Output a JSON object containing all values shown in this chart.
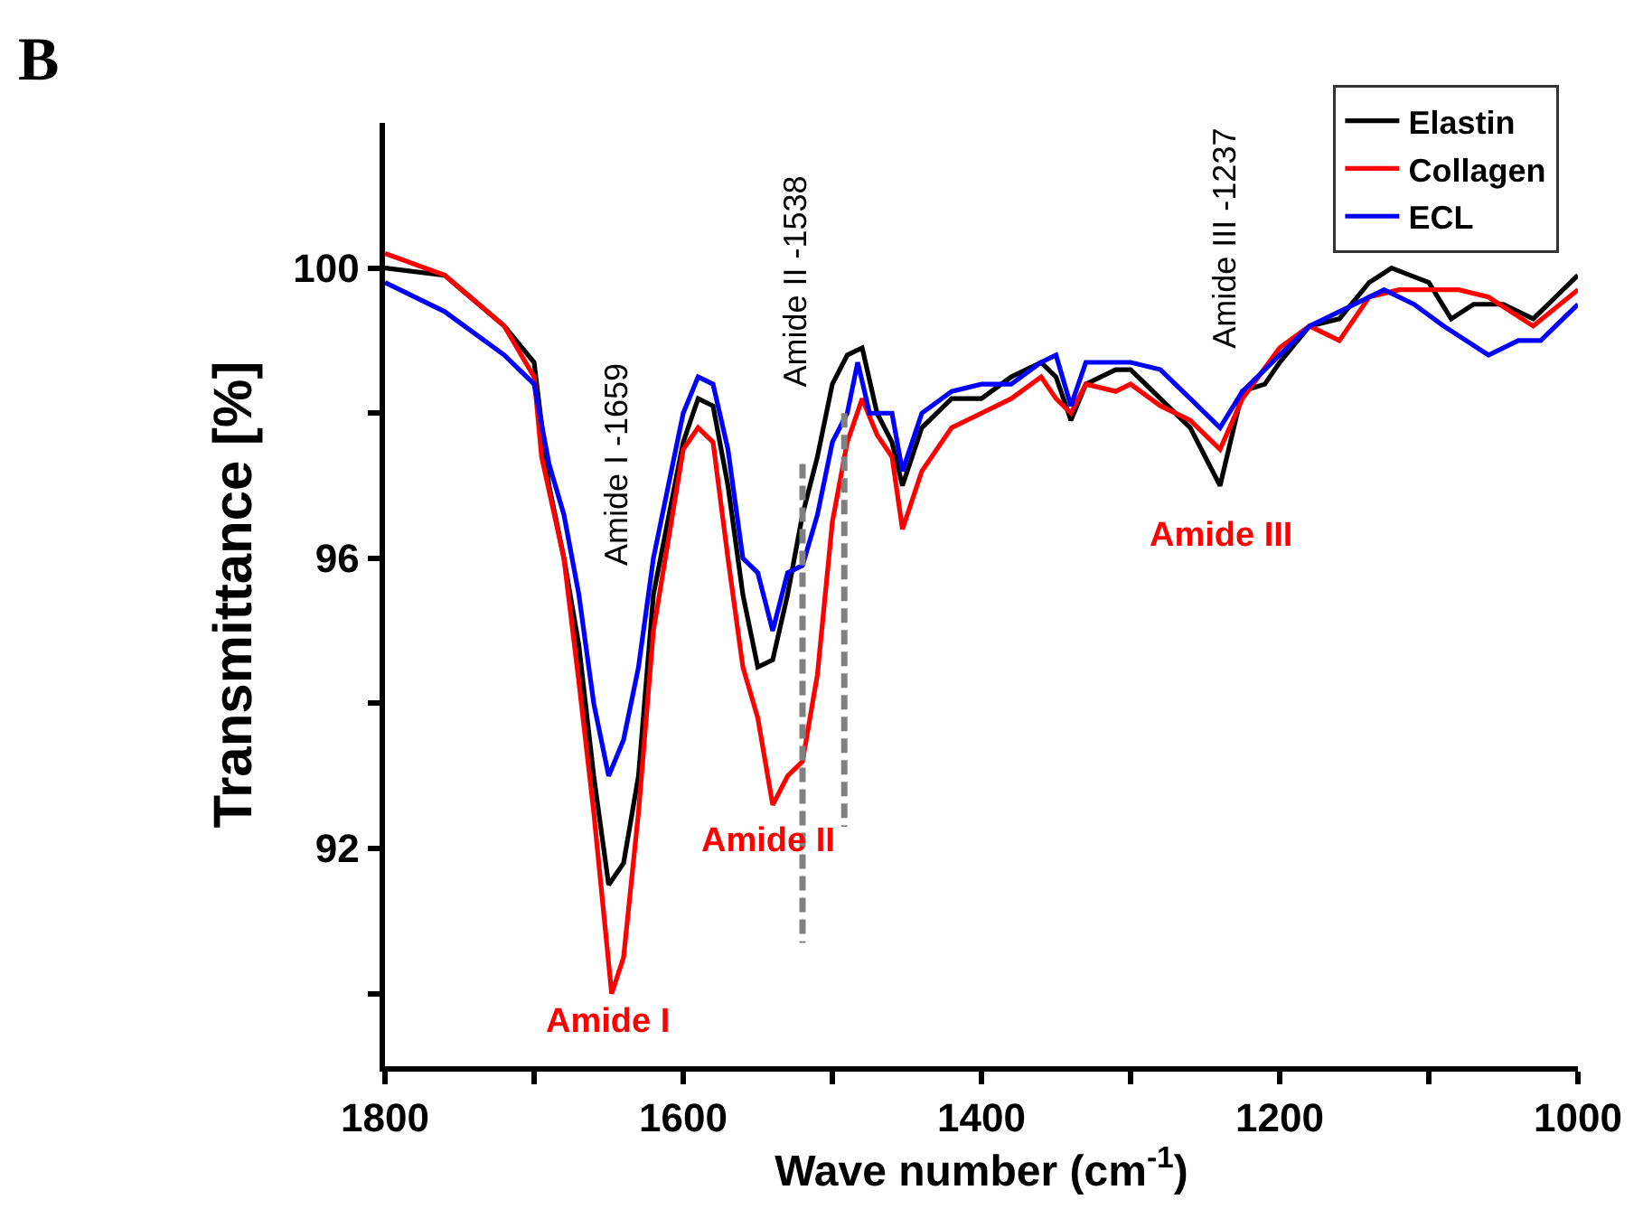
{
  "chart_data": {
    "type": "line",
    "xlabel": "Wave number (cm$^{-1}$)",
    "ylabel": "Transmittance [%]",
    "xlim": [
      1800,
      1000
    ],
    "xticks": [
      1800,
      {
        "value": 1700,
        "label": null
      },
      1600,
      {
        "value": 1500,
        "label": null
      },
      1400,
      {
        "value": 1300,
        "label": null
      },
      1200,
      {
        "value": 1100,
        "label": null
      },
      1000
    ],
    "ylim": [
      89,
      102
    ],
    "yticks": [
      {
        "value": 90,
        "label": null
      },
      92,
      {
        "value": 94,
        "label": null
      },
      96,
      {
        "value": 98,
        "label": null
      },
      100
    ],
    "grid": false,
    "legend": "top right",
    "marker": "none",
    "line_style": "solid",
    "series": [
      {
        "name": "Elastin",
        "color": "#000000",
        "x": [
          1800,
          1760,
          1720,
          1700,
          1690,
          1680,
          1670,
          1660,
          1650,
          1640,
          1630,
          1620,
          1600,
          1590,
          1580,
          1570,
          1560,
          1550,
          1540,
          1530,
          1520,
          1510,
          1500,
          1490,
          1480,
          1470,
          1460,
          1453,
          1440,
          1420,
          1400,
          1380,
          1360,
          1350,
          1340,
          1330,
          1310,
          1300,
          1280,
          1260,
          1240,
          1225,
          1210,
          1200,
          1180,
          1160,
          1140,
          1125,
          1100,
          1085,
          1070,
          1050,
          1030,
          1015,
          1000
        ],
        "values": [
          100.0,
          99.9,
          99.2,
          98.7,
          97.0,
          96.0,
          94.8,
          93.0,
          91.5,
          91.8,
          93.0,
          95.5,
          97.6,
          98.2,
          98.1,
          97.0,
          95.5,
          94.5,
          94.6,
          95.5,
          96.6,
          97.4,
          98.4,
          98.8,
          98.9,
          98.0,
          97.6,
          97.0,
          97.8,
          98.2,
          98.2,
          98.5,
          98.7,
          98.5,
          97.9,
          98.4,
          98.6,
          98.6,
          98.2,
          97.8,
          97.0,
          98.3,
          98.4,
          98.7,
          99.2,
          99.3,
          99.8,
          100.0,
          99.8,
          99.3,
          99.5,
          99.5,
          99.3,
          99.6,
          99.9
        ]
      },
      {
        "name": "Collagen",
        "color": "#ff0000",
        "x": [
          1800,
          1760,
          1720,
          1700,
          1695,
          1680,
          1670,
          1660,
          1648,
          1640,
          1630,
          1620,
          1600,
          1590,
          1580,
          1570,
          1560,
          1550,
          1540,
          1530,
          1520,
          1510,
          1500,
          1490,
          1480,
          1470,
          1460,
          1453,
          1440,
          1420,
          1400,
          1380,
          1360,
          1350,
          1340,
          1330,
          1310,
          1300,
          1280,
          1260,
          1240,
          1225,
          1200,
          1180,
          1160,
          1140,
          1120,
          1100,
          1080,
          1060,
          1030,
          1000
        ],
        "values": [
          100.2,
          99.9,
          99.2,
          98.5,
          97.4,
          96.0,
          94.3,
          92.5,
          90.0,
          90.5,
          92.5,
          95.0,
          97.5,
          97.8,
          97.6,
          96.0,
          94.5,
          93.8,
          92.6,
          93.0,
          93.2,
          94.4,
          96.5,
          97.6,
          98.2,
          97.7,
          97.4,
          96.4,
          97.2,
          97.8,
          98.0,
          98.2,
          98.5,
          98.2,
          98.0,
          98.4,
          98.3,
          98.4,
          98.1,
          97.9,
          97.5,
          98.2,
          98.9,
          99.2,
          99.0,
          99.6,
          99.7,
          99.7,
          99.7,
          99.6,
          99.2,
          99.7
        ]
      },
      {
        "name": "ECL",
        "color": "#0000ff",
        "x": [
          1800,
          1760,
          1720,
          1700,
          1690,
          1680,
          1670,
          1660,
          1650,
          1640,
          1630,
          1620,
          1600,
          1590,
          1580,
          1570,
          1560,
          1550,
          1540,
          1530,
          1520,
          1510,
          1500,
          1490,
          1483,
          1475,
          1460,
          1453,
          1440,
          1420,
          1400,
          1380,
          1360,
          1350,
          1340,
          1330,
          1310,
          1300,
          1280,
          1260,
          1240,
          1225,
          1210,
          1200,
          1180,
          1160,
          1130,
          1110,
          1090,
          1075,
          1060,
          1040,
          1025,
          1000
        ],
        "values": [
          99.8,
          99.4,
          98.8,
          98.4,
          97.3,
          96.6,
          95.5,
          94.0,
          93.0,
          93.5,
          94.5,
          96.0,
          98.0,
          98.5,
          98.4,
          97.5,
          96.0,
          95.8,
          95.0,
          95.8,
          95.9,
          96.6,
          97.6,
          98.0,
          98.7,
          98.0,
          98.0,
          97.2,
          98.0,
          98.3,
          98.4,
          98.4,
          98.7,
          98.8,
          98.1,
          98.7,
          98.7,
          98.7,
          98.6,
          98.2,
          97.8,
          98.3,
          98.6,
          98.8,
          99.2,
          99.4,
          99.7,
          99.5,
          99.2,
          99.0,
          98.8,
          99.0,
          99.0,
          99.5
        ]
      },
      {
        "color": "#808080",
        "line_style": "dashed",
        "x": [
          1520,
          1520
        ],
        "values": [
          97.3,
          90.7
        ]
      },
      {
        "color": "#808080",
        "line_style": "dashed",
        "x": [
          1492,
          1492
        ],
        "values": [
          98.0,
          92.3
        ]
      }
    ],
    "annotations": [
      "B",
      "Amide I -1659",
      "Amide II -1538",
      "Amide III -1237",
      "Amide I",
      "Amide II",
      "Amide III"
    ]
  }
}
